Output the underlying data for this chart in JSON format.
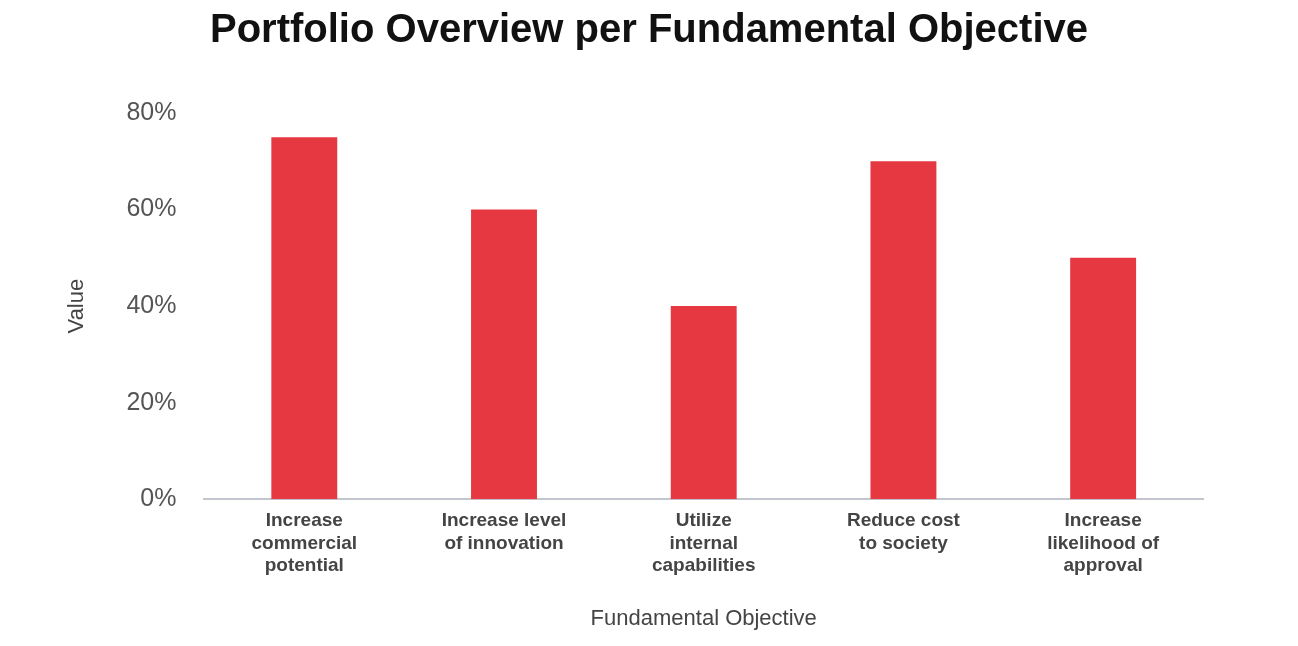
{
  "chart_data": {
    "type": "bar",
    "title": "Portfolio Overview per Fundamental Objective",
    "xlabel": "Fundamental Objective",
    "ylabel": "Value",
    "categories": [
      "Increase commercial potential",
      "Increase level of innovation",
      "Utilize internal capabilities",
      "Reduce cost to society",
      "Increase likelihood of approval"
    ],
    "values": [
      75,
      60,
      40,
      70,
      50
    ],
    "color": "#e53841",
    "ylim": [
      0,
      80
    ],
    "yticks": [
      {
        "value": 0,
        "label": "0%"
      },
      {
        "value": 20,
        "label": "20%"
      },
      {
        "value": 40,
        "label": "40%"
      },
      {
        "value": 60,
        "label": "60%"
      },
      {
        "value": 80,
        "label": "80%"
      }
    ],
    "grid": false,
    "legend": false
  }
}
